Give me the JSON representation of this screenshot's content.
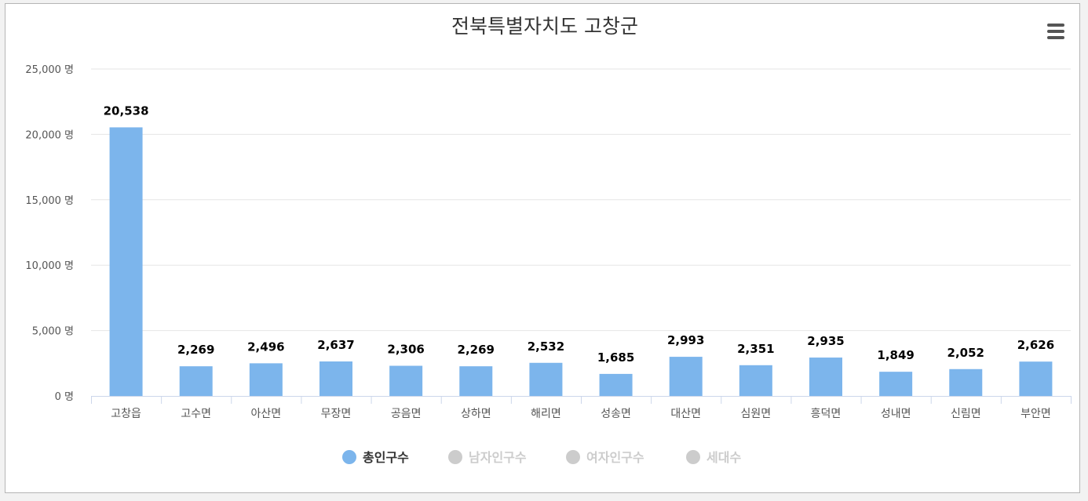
{
  "chart_data": {
    "type": "bar",
    "title": "전북특별자치도 고창군",
    "categories": [
      "고창읍",
      "고수면",
      "아산면",
      "무장면",
      "공음면",
      "상하면",
      "해리면",
      "성송면",
      "대산면",
      "심원면",
      "흥덕면",
      "성내면",
      "신림면",
      "부안면"
    ],
    "series": [
      {
        "name": "총인구수",
        "values": [
          20538,
          2269,
          2496,
          2637,
          2306,
          2269,
          2532,
          1685,
          2993,
          2351,
          2935,
          1849,
          2052,
          2626
        ],
        "visible": true
      }
    ],
    "data_labels": [
      "20,538",
      "2,269",
      "2,496",
      "2,637",
      "2,306",
      "2,269",
      "2,532",
      "1,685",
      "2,993",
      "2,351",
      "2,935",
      "1,849",
      "2,052",
      "2,626"
    ],
    "ylim": [
      0,
      25000
    ],
    "y_ticks": [
      0,
      5000,
      10000,
      15000,
      20000,
      25000
    ],
    "y_tick_labels": [
      "0 명",
      "5,000 명",
      "10,000 명",
      "15,000 명",
      "20,000 명",
      "25,000 명"
    ],
    "grid": true,
    "legend_position": "bottom",
    "legend": [
      {
        "label": "총인구수",
        "active": true
      },
      {
        "label": "남자인구수",
        "active": false
      },
      {
        "label": "여자인구수",
        "active": false
      },
      {
        "label": "세대수",
        "active": false
      }
    ],
    "colors": {
      "bar": "#7cb5ec",
      "grid": "#e6e6e6",
      "axis": "#ccd6eb",
      "legend_inactive": "#cccccc",
      "text": "#333333"
    }
  },
  "toolbar": {
    "menu_icon": "hamburger-menu-icon"
  }
}
